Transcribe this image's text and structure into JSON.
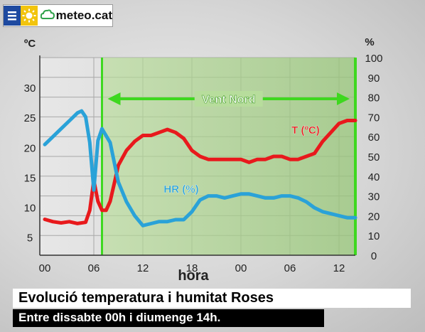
{
  "logo": {
    "text": "meteo.cat",
    "icons": [
      "menu-icon",
      "sun-icon",
      "cloud-icon"
    ]
  },
  "title": "Evolució temperatura i humitat Roses",
  "subtitle": "Entre dissabte 00h i diumenge 14h.",
  "chart_data": {
    "type": "line",
    "xlabel": "hora",
    "x_ticks": [
      "00",
      "06",
      "12",
      "18",
      "00",
      "06",
      "12"
    ],
    "x_range_hours": [
      0,
      38
    ],
    "y_left": {
      "label": "ºC",
      "ticks": [
        "5",
        "10",
        "15",
        "20",
        "25",
        "30"
      ],
      "range": [
        2,
        35
      ]
    },
    "y_right": {
      "label": "%",
      "ticks": [
        "0",
        "10",
        "20",
        "30",
        "40",
        "50",
        "60",
        "70",
        "80",
        "90",
        "100"
      ],
      "range": [
        0,
        100
      ]
    },
    "grid": true,
    "annotation": {
      "text": "Vent Nord",
      "from_hour": 7,
      "to_hour": 38
    },
    "series": [
      {
        "name": "T (ºC)",
        "axis": "left",
        "color": "#e8191c",
        "x": [
          0,
          1,
          2,
          3,
          4,
          5,
          5.5,
          6,
          6.5,
          7,
          7.5,
          8,
          8.5,
          9,
          10,
          11,
          12,
          13,
          14,
          15,
          16,
          17,
          18,
          19,
          20,
          21,
          22,
          23,
          24,
          25,
          26,
          27,
          28,
          29,
          30,
          31,
          32,
          33,
          34,
          35,
          36,
          37,
          38
        ],
        "y": [
          8,
          7.6,
          7.4,
          7.6,
          7.3,
          7.5,
          9.5,
          14.5,
          11,
          9.5,
          9.5,
          11,
          14,
          17,
          19.5,
          21,
          22,
          22,
          22.5,
          23,
          22.5,
          21.5,
          19.5,
          18.5,
          18,
          18,
          18,
          18,
          18,
          17.5,
          18,
          18,
          18.5,
          18.5,
          18,
          18,
          18.5,
          19,
          21,
          22.5,
          24,
          24.5,
          24.5
        ]
      },
      {
        "name": "HR (%)",
        "axis": "right",
        "color": "#2aa2d8",
        "x": [
          0,
          1,
          2,
          3,
          4,
          4.5,
          5,
          5.5,
          6,
          6.5,
          7,
          8,
          9,
          10,
          11,
          12,
          13,
          14,
          15,
          16,
          17,
          18,
          19,
          20,
          21,
          22,
          23,
          24,
          25,
          26,
          27,
          28,
          29,
          30,
          31,
          32,
          33,
          34,
          35,
          36,
          37,
          38
        ],
        "y": [
          56,
          60,
          64,
          68,
          72,
          73,
          70,
          57,
          33,
          58,
          64,
          57,
          37,
          27,
          20,
          15,
          16,
          17,
          17,
          18,
          18,
          22,
          28,
          30,
          30,
          29,
          30,
          31,
          31,
          30,
          29,
          29,
          30,
          30,
          29,
          27,
          24,
          22,
          21,
          20,
          19,
          19
        ]
      }
    ],
    "series_labels": [
      {
        "text": "T (ºC)",
        "color": "#e8191c"
      },
      {
        "text": "HR (%)",
        "color": "#2aa2d8"
      }
    ]
  }
}
